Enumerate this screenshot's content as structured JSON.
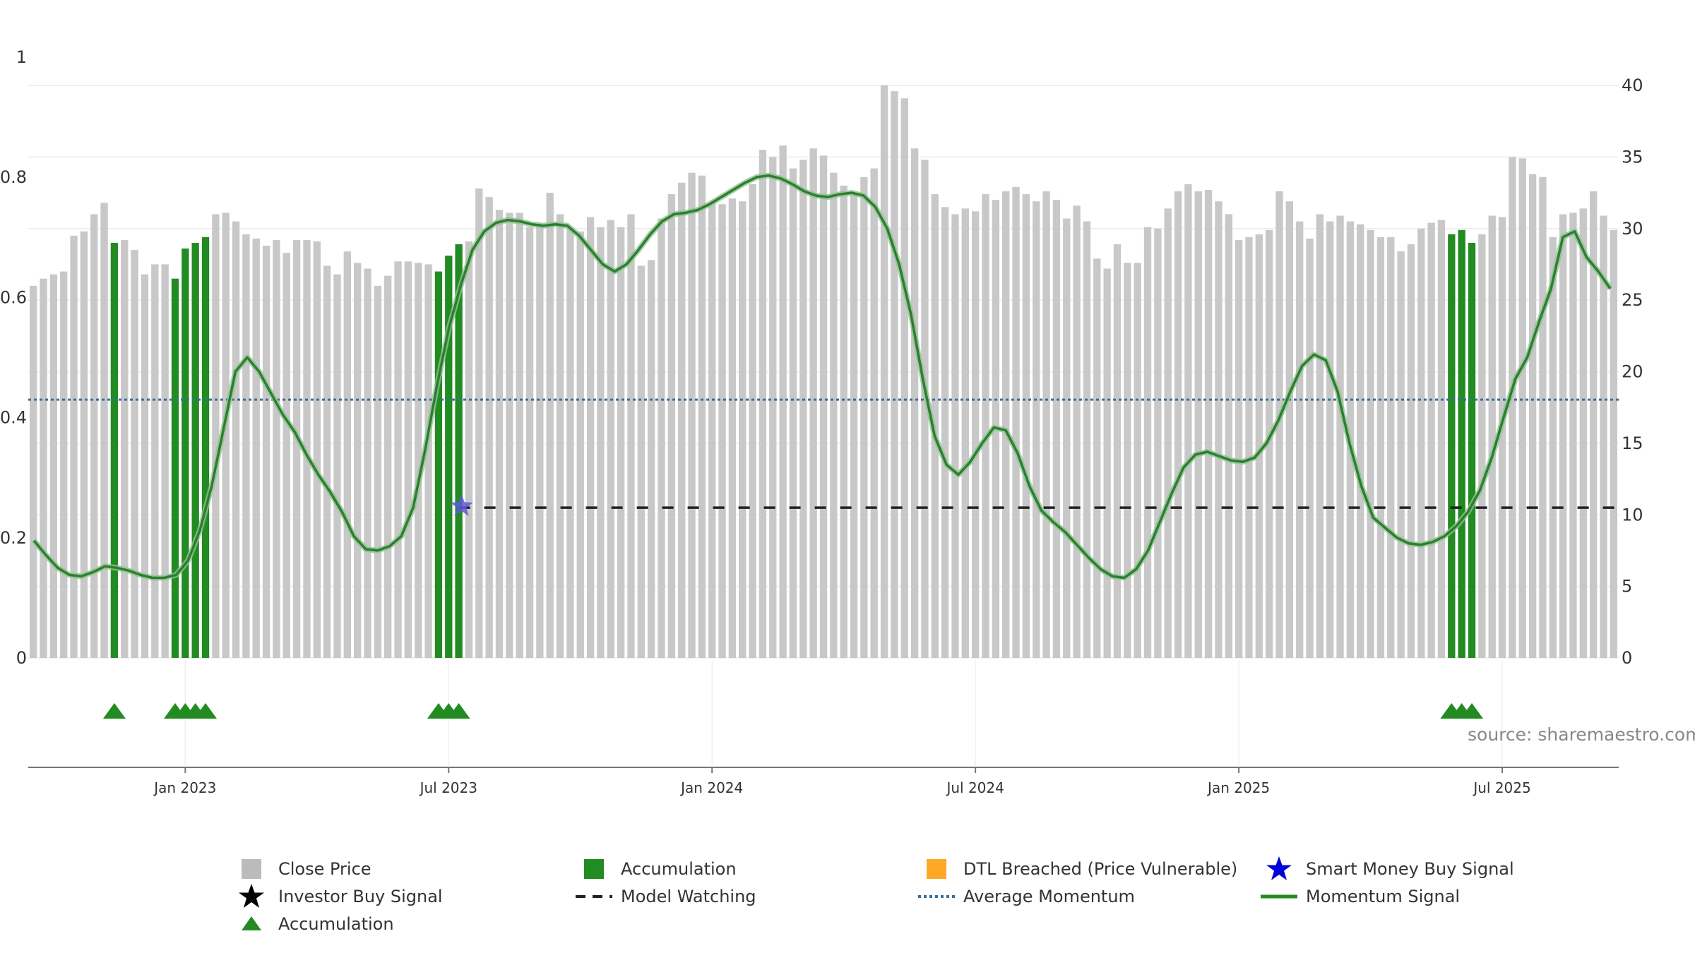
{
  "chart_data": {
    "type": "bar",
    "title": "",
    "xlabel": "",
    "ylabel": "",
    "left_axis": {
      "ticks": [
        "0",
        "0.2",
        "0.4",
        "0.6",
        "0.8",
        "1"
      ],
      "range": [
        0,
        1
      ]
    },
    "right_axis": {
      "ticks": [
        "0",
        "5",
        "10",
        "15",
        "20",
        "25",
        "30",
        "35",
        "40"
      ],
      "range": [
        0,
        40
      ]
    },
    "x_ticks": [
      {
        "label": "Jan 2023",
        "week": 15
      },
      {
        "label": "Jul 2023",
        "week": 41
      },
      {
        "label": "Jan 2024",
        "week": 67
      },
      {
        "label": "Jul 2024",
        "week": 93
      },
      {
        "label": "Jan 2025",
        "week": 119
      },
      {
        "label": "Jul 2025",
        "week": 145
      }
    ],
    "weeks_total": 157,
    "close_price": [
      26.0,
      26.5,
      26.8,
      27.0,
      29.5,
      29.8,
      31.0,
      31.8,
      29.0,
      29.2,
      28.5,
      26.8,
      27.5,
      27.5,
      26.5,
      28.6,
      29.0,
      29.4,
      31.0,
      31.1,
      30.5,
      29.6,
      29.3,
      28.8,
      29.2,
      28.3,
      29.2,
      29.2,
      29.1,
      27.4,
      26.8,
      28.4,
      27.6,
      27.2,
      26.0,
      26.7,
      27.7,
      27.7,
      27.6,
      27.5,
      27.0,
      28.1,
      28.9,
      29.1,
      32.8,
      32.2,
      31.3,
      31.1,
      31.1,
      30.1,
      30.2,
      32.5,
      31.0,
      30.0,
      29.8,
      30.8,
      30.1,
      30.6,
      30.1,
      31.0,
      27.4,
      27.8,
      30.7,
      32.4,
      33.2,
      33.9,
      33.7,
      31.8,
      31.7,
      32.1,
      31.9,
      33.1,
      35.5,
      35.0,
      35.8,
      34.2,
      34.8,
      35.6,
      35.1,
      33.9,
      33.0,
      32.4,
      33.6,
      34.2,
      40.0,
      39.6,
      39.1,
      35.6,
      34.8,
      32.4,
      31.5,
      31.0,
      31.4,
      31.2,
      32.4,
      32.0,
      32.6,
      32.9,
      32.4,
      31.9,
      32.6,
      32.0,
      30.7,
      31.6,
      30.5,
      27.9,
      27.2,
      28.9,
      27.6,
      27.6,
      30.1,
      30.0,
      31.4,
      32.6,
      33.1,
      32.6,
      32.7,
      31.9,
      31.0,
      29.2,
      29.4,
      29.6,
      29.9,
      32.6,
      31.9,
      30.5,
      29.3,
      31.0,
      30.5,
      30.9,
      30.5,
      30.3,
      29.9,
      29.4,
      29.4,
      28.4,
      28.9,
      30.0,
      30.4,
      30.6,
      29.6,
      29.9,
      29.0,
      29.6,
      30.9,
      30.8,
      35.0,
      34.9,
      33.8,
      33.6,
      29.4,
      31.0,
      31.1,
      31.4,
      32.6,
      30.9,
      29.9
    ],
    "accumulation_weeks": [
      8,
      14,
      15,
      16,
      17,
      40,
      41,
      42,
      140,
      141,
      142
    ],
    "accumulation_markers": [
      8,
      14,
      15,
      16,
      17,
      40,
      41,
      42,
      140,
      141,
      142
    ],
    "momentum": [
      8.2,
      7.2,
      6.3,
      5.8,
      5.7,
      6.0,
      6.4,
      6.3,
      6.1,
      5.8,
      5.6,
      5.6,
      5.8,
      6.8,
      8.9,
      12.0,
      16.0,
      20.0,
      21.0,
      20.0,
      18.5,
      17.0,
      15.8,
      14.2,
      12.8,
      11.6,
      10.2,
      8.5,
      7.6,
      7.5,
      7.8,
      8.5,
      10.5,
      14.5,
      19.0,
      23.0,
      26.0,
      28.5,
      29.8,
      30.4,
      30.6,
      30.5,
      30.3,
      30.2,
      30.3,
      30.2,
      29.5,
      28.5,
      27.5,
      27.0,
      27.5,
      28.5,
      29.6,
      30.5,
      31.0,
      31.1,
      31.3,
      31.7,
      32.2,
      32.7,
      33.2,
      33.6,
      33.7,
      33.5,
      33.1,
      32.6,
      32.3,
      32.2,
      32.4,
      32.5,
      32.3,
      31.5,
      30.0,
      27.5,
      24.0,
      19.5,
      15.5,
      13.5,
      12.8,
      13.7,
      15.0,
      16.1,
      15.9,
      14.3,
      12.0,
      10.3,
      9.5,
      8.8,
      7.9,
      7.0,
      6.2,
      5.7,
      5.6,
      6.2,
      7.5,
      9.5,
      11.5,
      13.3,
      14.2,
      14.4,
      14.1,
      13.8,
      13.7,
      14.0,
      15.0,
      16.6,
      18.6,
      20.4,
      21.2,
      20.8,
      18.6,
      15.0,
      12.0,
      9.8,
      9.1,
      8.4,
      8.0,
      7.9,
      8.1,
      8.5,
      9.2,
      10.2,
      11.7,
      14.0,
      16.8,
      19.5,
      21.0,
      23.5,
      25.8,
      29.4,
      29.8,
      28.0,
      27.0,
      25.8
    ],
    "average_momentum": 0.43,
    "model_watching_level": 10.5,
    "model_watching_start_week": 42,
    "smart_money_buy_signal": {
      "week": 42,
      "value": 10.5
    },
    "legend": [
      {
        "name": "Close Price",
        "color": "#bbbbbb"
      },
      {
        "name": "Accumulation",
        "color": "#228b22"
      },
      {
        "name": "DTL Breached (Price Vulnerable)",
        "color": "#ffa726"
      },
      {
        "name": "Smart Money Buy Signal",
        "color": "#0000dd"
      },
      {
        "name": "Investor Buy Signal",
        "color": "#000000"
      },
      {
        "name": "Model Watching",
        "color": "#222222"
      },
      {
        "name": "Average Momentum",
        "color": "#3a6e9a"
      },
      {
        "name": "Momentum Signal",
        "color": "#228b22"
      },
      {
        "name": "Accumulation",
        "color": "#228b22"
      }
    ],
    "source": "source: sharemaestro.com"
  }
}
